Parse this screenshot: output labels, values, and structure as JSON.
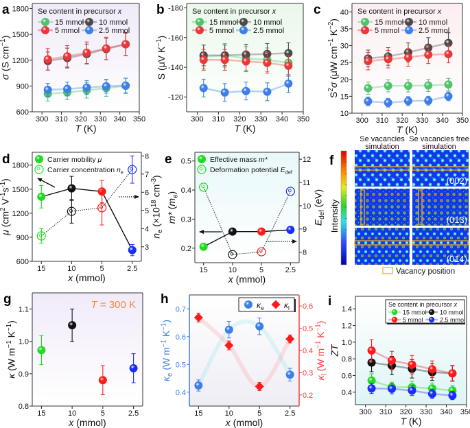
{
  "colors": {
    "green": "#4ec46b",
    "black": "#4a4a4a",
    "red": "#e8383a",
    "blue": "#3d7fe6",
    "pure_green": "#1fdc1f",
    "pure_black": "#111111",
    "pure_red": "#ff1a1a",
    "pure_blue": "#1a2dff",
    "kappa_e_axis": "#3d7fe6",
    "kappa_l_axis": "#ff3b3b",
    "annotation_orange": "#f08a3c",
    "vacancy_box": "#f0b020"
  },
  "panels": {
    "a": {
      "letter": "a",
      "type": "line",
      "bg": [
        "#efeaf8",
        "#ffffff"
      ],
      "legend_title": [
        {
          "t": "Se content in precursor "
        },
        {
          "t": "x",
          "f": "i"
        }
      ],
      "xlim": [
        295,
        350
      ],
      "ylim": [
        600,
        1860
      ],
      "xticks": [
        300,
        310,
        320,
        330,
        340,
        350
      ],
      "yticks": [
        600,
        900,
        1200,
        1500,
        1800
      ],
      "xlabel": [
        {
          "t": "T",
          "f": "i"
        },
        {
          "t": " (K)"
        }
      ],
      "ylabel": [
        {
          "t": "σ",
          "f": "i"
        },
        {
          "t": " (S cm"
        },
        {
          "t": "−1",
          "f": "sup"
        },
        {
          "t": ")"
        }
      ],
      "x": [
        303,
        313,
        323,
        333,
        343
      ],
      "series": [
        {
          "name": "15 mmol",
          "color": "green",
          "y": [
            810,
            825,
            850,
            875,
            902
          ],
          "err": [
            85,
            85,
            90,
            95,
            90
          ]
        },
        {
          "name": "10 mmol",
          "color": "black",
          "y": [
            1190,
            1225,
            1272,
            1330,
            1385
          ],
          "err": [
            105,
            115,
            115,
            125,
            130
          ]
        },
        {
          "name": "5 mmol",
          "color": "red",
          "y": [
            1210,
            1245,
            1287,
            1337,
            1387
          ],
          "err": [
            125,
            125,
            125,
            130,
            135
          ]
        },
        {
          "name": "2.5 mmol",
          "color": "blue",
          "y": [
            855,
            865,
            882,
            897,
            905
          ],
          "err": [
            75,
            80,
            80,
            80,
            85
          ]
        }
      ]
    },
    "b": {
      "letter": "b",
      "type": "line",
      "bg": [
        "#eaf8ea",
        "#ffffff"
      ],
      "legend_title": [
        {
          "t": "Se content in precursor "
        },
        {
          "t": "x",
          "f": "i"
        }
      ],
      "xlim": [
        295,
        350
      ],
      "ylim": [
        -110,
        -183
      ],
      "xticks": [
        300,
        310,
        320,
        330,
        340,
        350
      ],
      "yticks": [
        -180,
        -160,
        -140,
        -120
      ],
      "xlabel": [
        {
          "t": "T",
          "f": "i"
        },
        {
          "t": " (K)"
        }
      ],
      "ylabel": [
        {
          "t": "S (μV K"
        },
        {
          "t": "−1",
          "f": "sup"
        },
        {
          "t": ")"
        }
      ],
      "x": [
        303,
        313,
        323,
        333,
        343
      ],
      "series": [
        {
          "name": "15 mmol",
          "color": "green",
          "y": [
            -147,
            -148,
            -146,
            -145,
            -143
          ],
          "err": [
            8,
            8,
            8,
            8,
            8
          ]
        },
        {
          "name": "10 mmol",
          "color": "black",
          "y": [
            -148,
            -148,
            -148.5,
            -149,
            -149.5
          ],
          "err": [
            7,
            7,
            7,
            7,
            7
          ]
        },
        {
          "name": "5 mmol",
          "color": "red",
          "y": [
            -145,
            -145,
            -144,
            -143,
            -141
          ],
          "err": [
            7,
            7,
            7,
            7,
            7
          ]
        },
        {
          "name": "2.5 mmol",
          "color": "blue",
          "y": [
            -126,
            -123,
            -124,
            -123.5,
            -129
          ],
          "err": [
            6,
            6,
            6,
            6,
            6
          ]
        }
      ]
    },
    "c": {
      "letter": "c",
      "type": "line",
      "bg": [
        "#fbeef0",
        "#ffffff"
      ],
      "legend_title": [
        {
          "t": "Se content in precursor "
        },
        {
          "t": "x",
          "f": "i"
        }
      ],
      "xlim": [
        295,
        350
      ],
      "ylim": [
        10,
        42.5
      ],
      "xticks": [
        300,
        310,
        320,
        330,
        340,
        350
      ],
      "yticks": [
        10,
        15,
        20,
        25,
        30,
        35,
        40
      ],
      "xlabel": [
        {
          "t": "T",
          "f": "i"
        },
        {
          "t": " (K)"
        }
      ],
      "ylabel": [
        {
          "t": "S"
        },
        {
          "t": "2",
          "f": "sup"
        },
        {
          "t": "σ",
          "f": "i"
        },
        {
          "t": " (μW cm"
        },
        {
          "t": "−1",
          "f": "sup"
        },
        {
          "t": " K"
        },
        {
          "t": "−2",
          "f": "sup"
        },
        {
          "t": ")"
        }
      ],
      "x": [
        303,
        313,
        323,
        333,
        343
      ],
      "series": [
        {
          "name": "15 mmol",
          "color": "green",
          "y": [
            17.4,
            18.1,
            18.1,
            18.2,
            18.5
          ],
          "err": [
            1.8,
            1.8,
            1.8,
            1.8,
            1.8
          ]
        },
        {
          "name": "10 mmol",
          "color": "black",
          "y": [
            26.2,
            26.8,
            28,
            29.4,
            30.8
          ],
          "err": [
            2.5,
            2.6,
            2.8,
            3,
            3
          ]
        },
        {
          "name": "5 mmol",
          "color": "red",
          "y": [
            25.4,
            26,
            26.5,
            27.3,
            27.5
          ],
          "err": [
            2.6,
            2.6,
            2.6,
            2.6,
            2.6
          ]
        },
        {
          "name": "2.5 mmol",
          "color": "blue",
          "y": [
            13.5,
            13.1,
            13.6,
            13.7,
            15
          ],
          "err": [
            1.3,
            1.3,
            1.3,
            1.3,
            1.3
          ]
        }
      ]
    },
    "d": {
      "letter": "d",
      "type": "scatter-line",
      "bg": [
        "#ffffff",
        "#ffffff"
      ],
      "categories": [
        "15",
        "10",
        "5",
        "2.5"
      ],
      "ylim": [
        600,
        1960
      ],
      "y2lim": [
        2.2,
        8.2
      ],
      "yticks": [
        600,
        900,
        1200,
        1500,
        1800
      ],
      "y2ticks": [
        3,
        4,
        5,
        6,
        7,
        8
      ],
      "xlabel": [
        {
          "t": "x",
          "f": "i"
        },
        {
          "t": " (mmol)"
        }
      ],
      "ylabel": [
        {
          "t": "μ",
          "f": "i"
        },
        {
          "t": " (cm"
        },
        {
          "t": "2",
          "f": "sup"
        },
        {
          "t": " V"
        },
        {
          "t": "-1",
          "f": "sup"
        },
        {
          "t": "s"
        },
        {
          "t": "-1",
          "f": "sup"
        },
        {
          "t": ")"
        }
      ],
      "y2label": [
        {
          "t": "n",
          "f": "i"
        },
        {
          "t": "e",
          "f": "sub"
        },
        {
          "t": " (×10"
        },
        {
          "t": "18",
          "f": "sup"
        },
        {
          "t": " cm"
        },
        {
          "t": "-3",
          "f": "sup"
        },
        {
          "t": ")"
        }
      ],
      "series": [
        {
          "name": [
            {
              "t": "Carrier mobility "
            },
            {
              "t": "μ",
              "f": "i"
            }
          ],
          "marker": "filled",
          "line": "solid",
          "axis": 1,
          "colors": [
            "pure_green",
            "pure_black",
            "pure_red",
            "pure_blue"
          ],
          "y": [
            1405,
            1510,
            1470,
            740
          ],
          "err": [
            140,
            150,
            140,
            70
          ]
        },
        {
          "name": [
            {
              "t": "Carrier concentration "
            },
            {
              "t": "n",
              "f": "i"
            },
            {
              "t": "e",
              "f": "sub"
            }
          ],
          "marker": "open",
          "line": "dotted",
          "axis": 2,
          "colors": [
            "pure_green",
            "pure_black",
            "pure_red",
            "pure_blue"
          ],
          "y": [
            3.6,
            4.95,
            5.15,
            7.25
          ],
          "err": [
            0.4,
            0.65,
            0.95,
            0.75
          ]
        }
      ]
    },
    "e": {
      "letter": "e",
      "type": "scatter-line",
      "bg": [
        "#e8f8fa",
        "#ffffff"
      ],
      "categories": [
        "15",
        "10",
        "5",
        "2.5"
      ],
      "ylim": [
        0.15,
        0.53
      ],
      "y2lim": [
        7.55,
        12.3
      ],
      "yticks": [
        0.2,
        0.3,
        0.4,
        0.5
      ],
      "y2ticks": [
        8,
        9,
        10,
        11,
        12
      ],
      "xlabel": [
        {
          "t": "x",
          "f": "i"
        },
        {
          "t": " (mmol)"
        }
      ],
      "ylabel": [
        {
          "t": "m*",
          "f": "i"
        },
        {
          "t": " ("
        },
        {
          "t": "m",
          "f": "i"
        },
        {
          "t": "e",
          "f": "sub"
        },
        {
          "t": ")"
        }
      ],
      "y2label": [
        {
          "t": "E",
          "f": "i"
        },
        {
          "t": "def",
          "f": "sub"
        },
        {
          "t": " (eV)"
        }
      ],
      "series": [
        {
          "name": [
            {
              "t": "Effective mass "
            },
            {
              "t": "m*",
              "f": "i"
            }
          ],
          "marker": "filled",
          "line": "solid",
          "axis": 1,
          "colors": [
            "pure_green",
            "pure_black",
            "pure_red",
            "pure_blue"
          ],
          "y": [
            0.205,
            0.257,
            0.257,
            0.263
          ]
        },
        {
          "name": [
            {
              "t": "Deformation potential "
            },
            {
              "t": "E",
              "f": "i"
            },
            {
              "t": "def",
              "f": "sub"
            }
          ],
          "marker": "open",
          "line": "dotted",
          "axis": 2,
          "colors": [
            "pure_green",
            "pure_black",
            "pure_red",
            "pure_blue"
          ],
          "y": [
            10.8,
            7.9,
            8.02,
            10.62
          ]
        }
      ]
    },
    "f": {
      "letter": "f",
      "col_titles": [
        [
          "Se vacancies",
          "simulation"
        ],
        [
          "Se vacancies free",
          "simulation"
        ]
      ],
      "planes": [
        "(002)",
        "(013)",
        "(014)"
      ],
      "colorbar_label": "Intensity",
      "legend": "Vacancy position"
    },
    "g": {
      "letter": "g",
      "type": "scatter",
      "bg": [
        "#f1ebfa",
        "#ffffff"
      ],
      "categories": [
        "15",
        "10",
        "5",
        "2.5"
      ],
      "ylim": [
        0.8,
        1.15
      ],
      "yticks": [
        "0.8",
        "0.9",
        "1.0",
        "1.1"
      ],
      "xlabel": [
        {
          "t": "x",
          "f": "i"
        },
        {
          "t": " (mmol)"
        }
      ],
      "ylabel": [
        {
          "t": "κ",
          "f": "i"
        },
        {
          "t": " (W m"
        },
        {
          "t": "−1",
          "f": "sup"
        },
        {
          "t": " K"
        },
        {
          "t": "−1",
          "f": "sup"
        },
        {
          "t": ")"
        }
      ],
      "annotation": [
        {
          "t": "T",
          "f": "i"
        },
        {
          "t": " = 300 K"
        }
      ],
      "series": [
        {
          "marker": "filled",
          "line": "none",
          "axis": 1,
          "colors": [
            "pure_green",
            "pure_black",
            "pure_red",
            "pure_blue"
          ],
          "y": [
            0.973,
            1.05,
            0.88,
            0.917
          ],
          "err": [
            0.045,
            0.05,
            0.045,
            0.045
          ]
        }
      ]
    },
    "h": {
      "letter": "h",
      "type": "scatter",
      "bg": [
        "#ffffff",
        "#eeedf5"
      ],
      "categories": [
        "15",
        "10",
        "5",
        "2.5"
      ],
      "ylim": [
        0.35,
        0.75
      ],
      "y2lim": [
        0.15,
        0.65
      ],
      "yticks": [
        0.4,
        0.5,
        0.6,
        0.7
      ],
      "y2ticks": [
        0.2,
        0.3,
        0.4,
        0.5,
        0.6
      ],
      "xlabel": [
        {
          "t": "x",
          "f": "i"
        },
        {
          "t": " (mmol)"
        }
      ],
      "ylabel": [
        {
          "t": "κ",
          "f": "i"
        },
        {
          "t": "e",
          "f": "sub"
        },
        {
          "t": " (W m"
        },
        {
          "t": "−1",
          "f": "sup"
        },
        {
          "t": " K"
        },
        {
          "t": "−1",
          "f": "sup"
        },
        {
          "t": ")"
        }
      ],
      "y2label": [
        {
          "t": "κ",
          "f": "i"
        },
        {
          "t": "l",
          "f": "sub"
        },
        {
          "t": " (W m"
        },
        {
          "t": "−1",
          "f": "sup"
        },
        {
          "t": " K"
        },
        {
          "t": "−1",
          "f": "sup"
        },
        {
          "t": ")"
        }
      ],
      "series": [
        {
          "name": [
            {
              "t": "κ",
              "f": "i"
            },
            {
              "t": "e",
              "f": "sub"
            }
          ],
          "marker": "filled",
          "line": "smooth",
          "axis": 1,
          "color": "blue",
          "y": [
            0.424,
            0.625,
            0.637,
            0.463
          ],
          "err": [
            0.02,
            0.03,
            0.03,
            0.023
          ]
        },
        {
          "name": [
            {
              "t": "κ",
              "f": "i"
            },
            {
              "t": "l",
              "f": "sub"
            }
          ],
          "marker": "diamond",
          "line": "smooth",
          "axis": 2,
          "color": "pure_red",
          "y": [
            0.548,
            0.423,
            0.238,
            0.452
          ],
          "err": [
            0.02,
            0.02,
            0.018,
            0.018
          ]
        }
      ]
    },
    "i": {
      "letter": "i",
      "type": "line",
      "bg": [
        "#ffffff",
        "#dff4f6"
      ],
      "legend_title": [
        {
          "t": "Se content in precursor "
        },
        {
          "t": "x",
          "f": "i"
        }
      ],
      "xlim": [
        295,
        350
      ],
      "ylim": [
        0.25,
        1.55
      ],
      "xticks": [
        300,
        310,
        320,
        330,
        340,
        350
      ],
      "yticks": [
        "0.4",
        "0.6",
        "0.8",
        "1.0",
        "1.2",
        "1.4"
      ],
      "xlabel": [
        {
          "t": "T",
          "f": "i"
        },
        {
          "t": " (K)"
        }
      ],
      "ylabel": [
        {
          "t": "ZT",
          "f": "i"
        }
      ],
      "x": [
        303,
        313,
        323,
        333,
        343
      ],
      "series": [
        {
          "name": "15 mmol",
          "color": "pure_green",
          "y": [
            0.54,
            0.46,
            0.46,
            0.445,
            0.42
          ],
          "err": [
            0.08,
            0.06,
            0.07,
            0.065,
            0.055
          ]
        },
        {
          "name": "10 mmol",
          "color": "pure_black",
          "y": [
            0.755,
            0.72,
            0.68,
            0.64,
            0.625
          ],
          "err": [
            0.11,
            0.11,
            0.11,
            0.1,
            0.09
          ]
        },
        {
          "name": "5 mmol",
          "color": "pure_red",
          "y": [
            0.9,
            0.78,
            0.73,
            0.675,
            0.625
          ],
          "err": [
            0.13,
            0.11,
            0.11,
            0.1,
            0.095
          ]
        },
        {
          "name": "2.5 mmol",
          "color": "pure_blue",
          "y": [
            0.445,
            0.44,
            0.42,
            0.38,
            0.36
          ],
          "err": [
            0.06,
            0.06,
            0.06,
            0.055,
            0.05
          ]
        }
      ]
    }
  }
}
